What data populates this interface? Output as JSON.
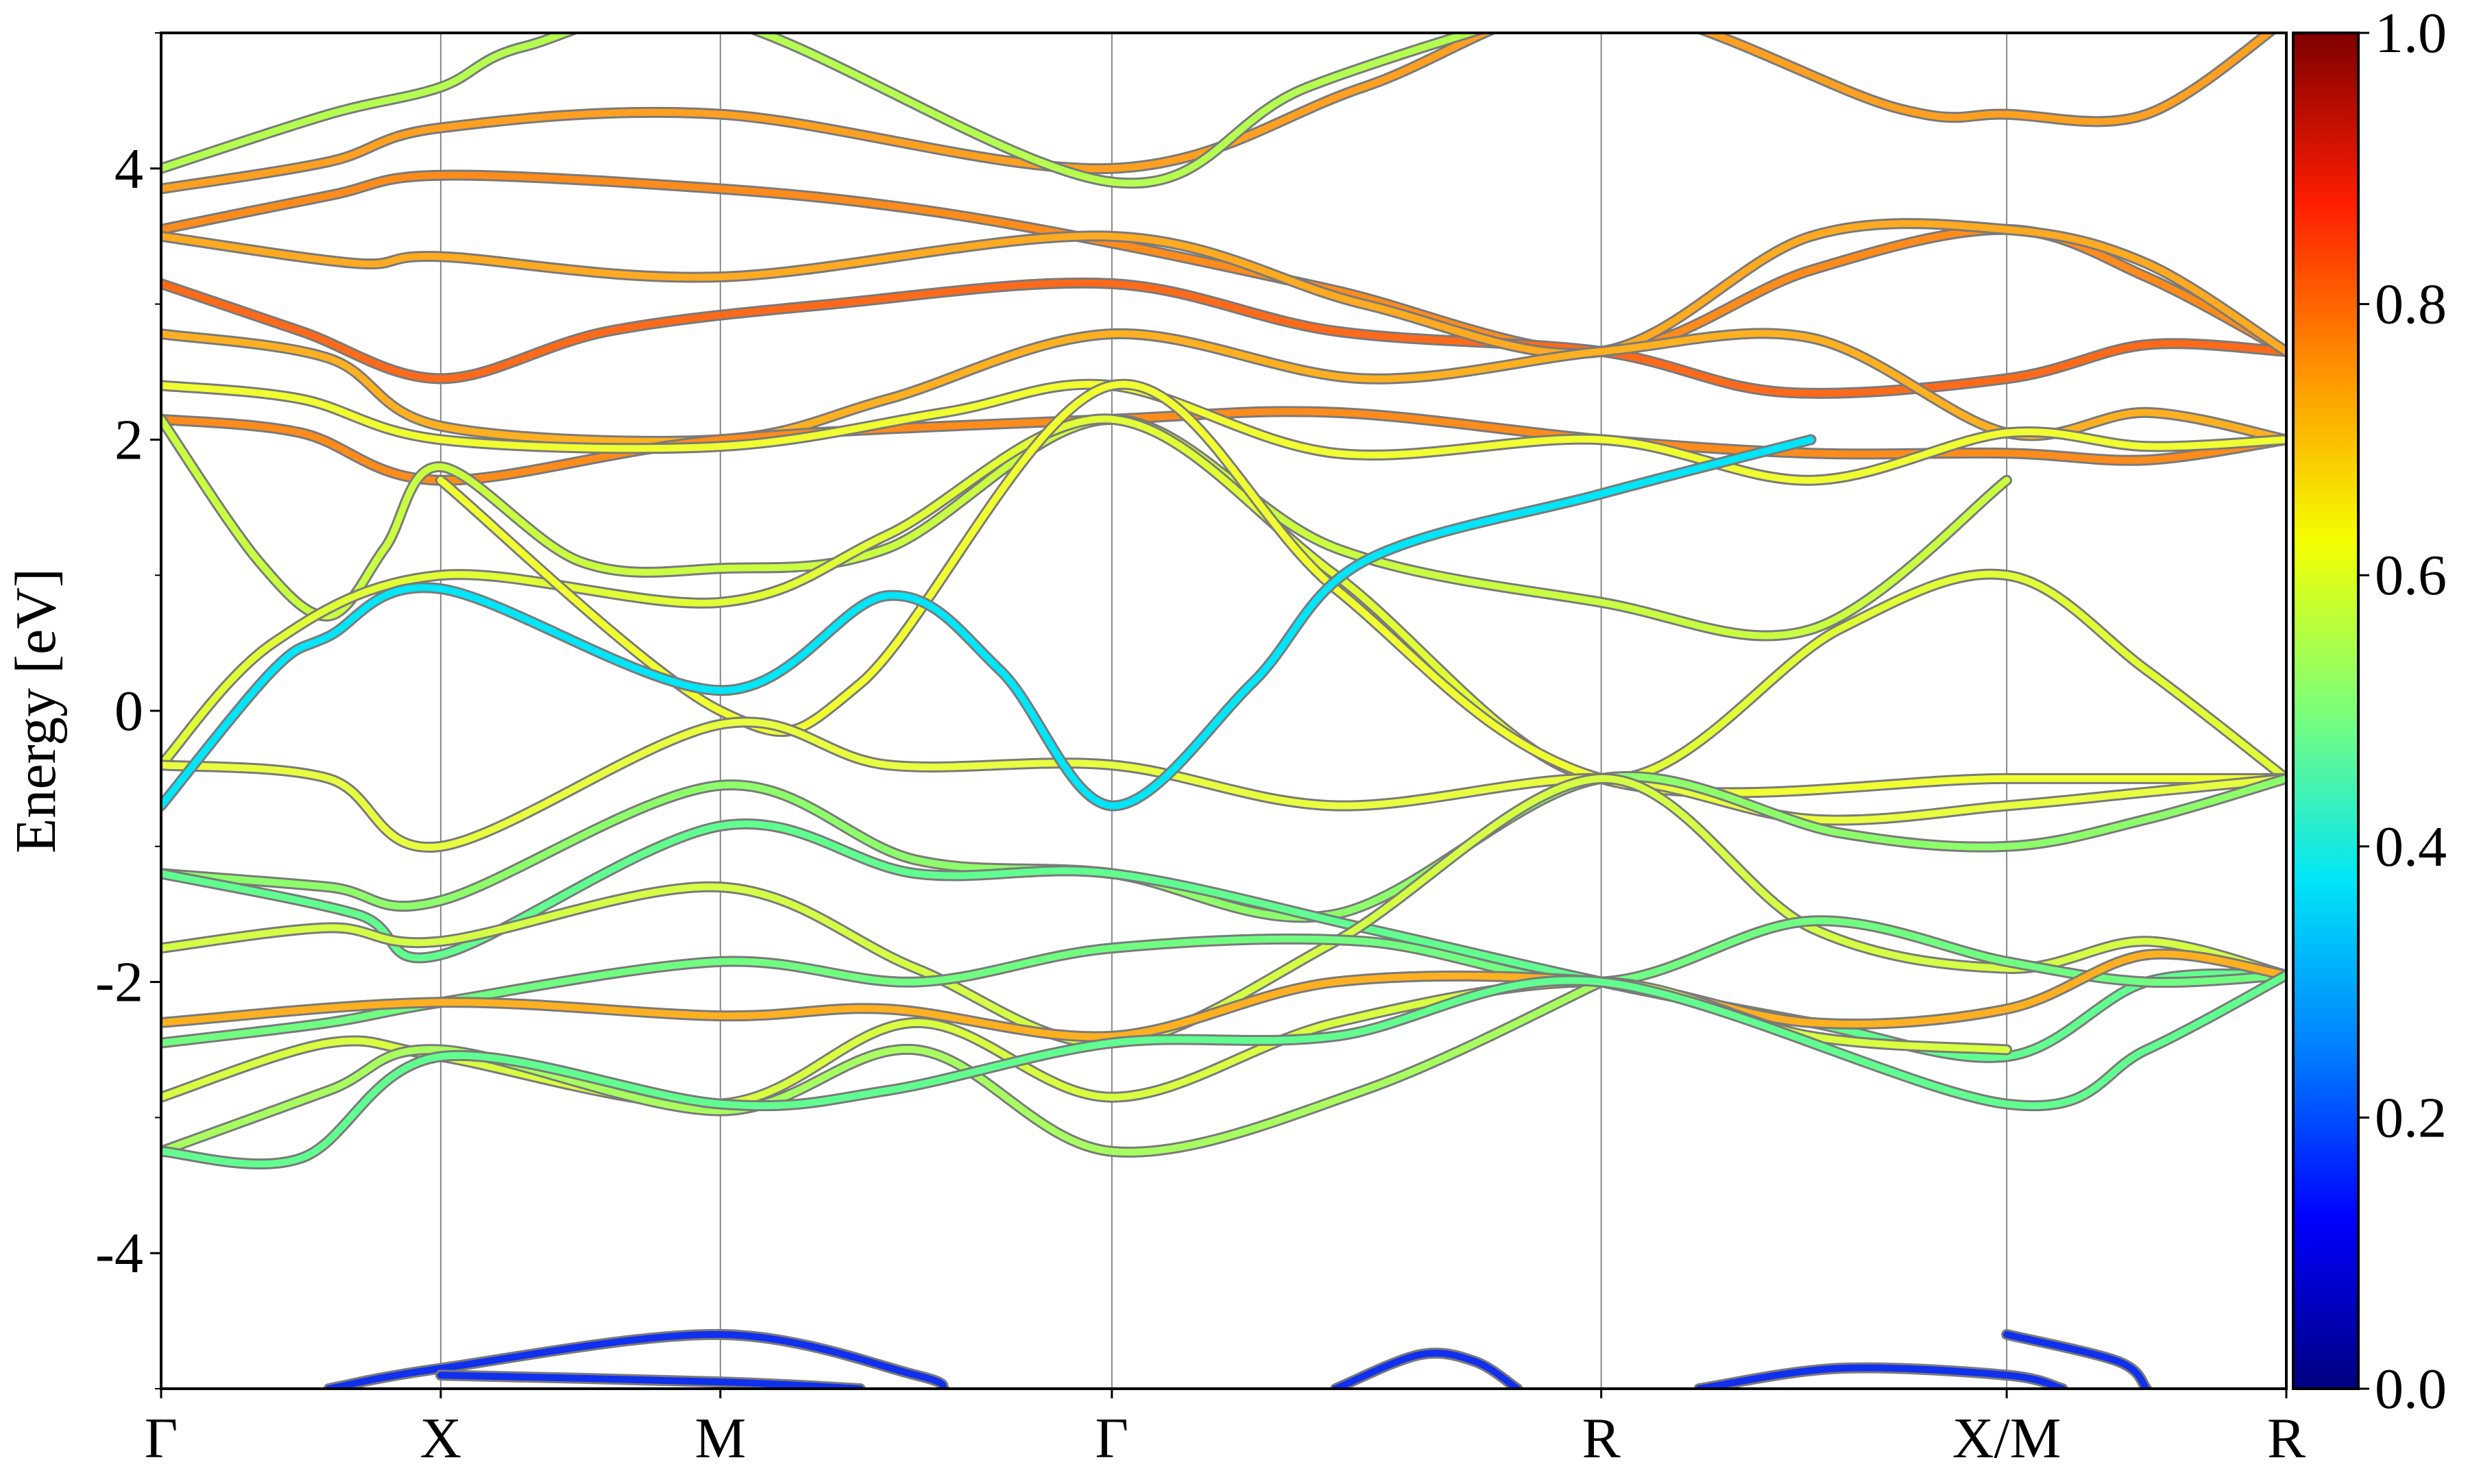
{
  "chart_data": {
    "type": "line",
    "title": "",
    "xlabel": "",
    "ylabel": "Energy [eV]",
    "ylim": [
      -5,
      5
    ],
    "yticks": [
      -4,
      -2,
      0,
      2,
      4
    ],
    "ytick_labels": [
      "-4",
      "-2",
      "0",
      "2",
      "4"
    ],
    "kpath_positions": [
      0,
      1,
      2,
      3.4,
      5.15,
      6.6,
      7.6
    ],
    "kpath_labels": [
      "Γ",
      "X",
      "M",
      "Γ",
      "R",
      "X/M",
      "R"
    ],
    "grid": "vertical lines at high-symmetry points",
    "colorbar": {
      "range": [
        0.0,
        1.0
      ],
      "ticks": [
        0.0,
        0.2,
        0.4,
        0.6,
        0.8,
        1.0
      ],
      "tick_labels": [
        "0.0",
        "0.2",
        "0.4",
        "0.6",
        "0.8",
        "1.0"
      ],
      "colormap": [
        "#00007f",
        "#0000ff",
        "#007fff",
        "#00e5f7",
        "#7cff79",
        "#f5ff00",
        "#ff9400",
        "#ff1d00",
        "#7f0000"
      ]
    },
    "series": [
      {
        "color": "#ff8c1a",
        "values": [
          [
            0,
            3.55
          ],
          [
            0.6,
            3.8
          ],
          [
            1,
            3.95
          ],
          [
            2,
            3.85
          ],
          [
            2.7,
            3.7
          ],
          [
            3.4,
            3.45
          ],
          [
            4.2,
            3.1
          ],
          [
            5.15,
            2.65
          ],
          [
            5.9,
            3.25
          ],
          [
            6.6,
            3.55
          ],
          [
            7.1,
            3.2
          ],
          [
            7.6,
            2.65
          ]
        ]
      },
      {
        "color": "#ff6a1a",
        "values": [
          [
            0,
            3.15
          ],
          [
            0.5,
            2.8
          ],
          [
            1,
            2.45
          ],
          [
            1.6,
            2.8
          ],
          [
            2.4,
            3.0
          ],
          [
            3.4,
            3.15
          ],
          [
            4.2,
            2.8
          ],
          [
            5.15,
            2.65
          ],
          [
            5.8,
            2.35
          ],
          [
            6.6,
            2.45
          ],
          [
            7.1,
            2.7
          ],
          [
            7.6,
            2.65
          ]
        ]
      },
      {
        "color": "#ffaa20",
        "values": [
          [
            0,
            3.5
          ],
          [
            0.7,
            3.3
          ],
          [
            1,
            3.35
          ],
          [
            2,
            3.2
          ],
          [
            3.4,
            3.5
          ],
          [
            4.3,
            3.0
          ],
          [
            5.15,
            2.65
          ],
          [
            5.9,
            3.5
          ],
          [
            6.6,
            3.55
          ],
          [
            7.1,
            3.3
          ],
          [
            7.6,
            2.65
          ]
        ]
      },
      {
        "color": "#ffb020",
        "values": [
          [
            0,
            2.78
          ],
          [
            0.6,
            2.6
          ],
          [
            1,
            2.1
          ],
          [
            2,
            2.0
          ],
          [
            2.6,
            2.3
          ],
          [
            3.4,
            2.78
          ],
          [
            4.3,
            2.45
          ],
          [
            5.15,
            2.65
          ],
          [
            5.9,
            2.75
          ],
          [
            6.6,
            2.05
          ],
          [
            7.1,
            2.2
          ],
          [
            7.6,
            2.0
          ]
        ]
      },
      {
        "color": "#ff8c1a",
        "values": [
          [
            0,
            2.15
          ],
          [
            0.5,
            2.05
          ],
          [
            1,
            1.7
          ],
          [
            2,
            2.0
          ],
          [
            3.4,
            2.15
          ],
          [
            4.2,
            2.2
          ],
          [
            5.15,
            2.0
          ],
          [
            5.9,
            1.9
          ],
          [
            6.6,
            1.9
          ],
          [
            7.1,
            1.85
          ],
          [
            7.6,
            2.0
          ]
        ]
      },
      {
        "color": "#ffa020",
        "values": [
          [
            0,
            3.85
          ],
          [
            0.6,
            4.05
          ],
          [
            1,
            4.3
          ],
          [
            2,
            4.4
          ],
          [
            3.4,
            4.0
          ],
          [
            4.3,
            4.6
          ],
          [
            5.15,
            5.2
          ],
          [
            6.2,
            4.45
          ],
          [
            6.6,
            4.4
          ],
          [
            7.1,
            4.4
          ],
          [
            7.6,
            5.1
          ]
        ]
      },
      {
        "color": "#b4ff50",
        "values": [
          [
            0,
            4.0
          ],
          [
            0.6,
            4.4
          ],
          [
            1,
            4.6
          ],
          [
            1.3,
            4.9
          ],
          [
            2,
            5.1
          ],
          [
            3.4,
            3.9
          ],
          [
            4.1,
            4.6
          ],
          [
            5.15,
            5.3
          ]
        ]
      },
      {
        "color": "#f0ff30",
        "values": [
          [
            0,
            2.4
          ],
          [
            0.5,
            2.3
          ],
          [
            1,
            2.0
          ],
          [
            2,
            1.95
          ],
          [
            2.8,
            2.2
          ],
          [
            3.4,
            2.4
          ],
          [
            4.2,
            1.9
          ],
          [
            5.15,
            2.0
          ],
          [
            5.9,
            1.7
          ],
          [
            6.6,
            2.05
          ],
          [
            7.1,
            1.95
          ],
          [
            7.6,
            2.0
          ]
        ]
      },
      {
        "color": "#c8ff40",
        "values": [
          [
            0,
            2.15
          ],
          [
            0.35,
            1.1
          ],
          [
            0.6,
            0.7
          ],
          [
            0.8,
            1.2
          ],
          [
            1,
            1.8
          ],
          [
            1.5,
            1.1
          ],
          [
            2,
            1.05
          ],
          [
            2.6,
            1.2
          ],
          [
            3.4,
            2.15
          ],
          [
            4.2,
            1.2
          ],
          [
            5.15,
            0.8
          ],
          [
            5.9,
            0.6
          ],
          [
            6.6,
            1.7
          ]
        ]
      },
      {
        "color": "#e0ff35",
        "values": [
          [
            0,
            -0.4
          ],
          [
            0.4,
            0.5
          ],
          [
            1,
            1.0
          ],
          [
            2,
            0.8
          ],
          [
            2.6,
            1.3
          ],
          [
            3.4,
            2.15
          ],
          [
            4.2,
            1.0
          ],
          [
            5.15,
            -0.5
          ],
          [
            6.0,
            0.6
          ],
          [
            6.6,
            1.0
          ],
          [
            7.1,
            0.3
          ],
          [
            7.6,
            -0.5
          ]
        ]
      },
      {
        "color": "#f0ff30",
        "values": [
          [
            1,
            1.7
          ],
          [
            2,
            0.0
          ],
          [
            2.5,
            0.2
          ],
          [
            3.4,
            2.4
          ],
          [
            4.2,
            0.9
          ],
          [
            5.15,
            -0.5
          ],
          [
            6.6,
            -0.5
          ],
          [
            7.6,
            -0.5
          ]
        ]
      },
      {
        "color": "#e8ff40",
        "values": [
          [
            0,
            -0.4
          ],
          [
            0.6,
            -0.5
          ],
          [
            1,
            -1.0
          ],
          [
            2,
            -0.1
          ],
          [
            2.6,
            -0.4
          ],
          [
            3.4,
            -0.4
          ],
          [
            4.2,
            -0.7
          ],
          [
            5.15,
            -0.5
          ],
          [
            5.9,
            -0.8
          ],
          [
            6.6,
            -0.7
          ],
          [
            7.1,
            -0.6
          ],
          [
            7.6,
            -0.5
          ]
        ]
      },
      {
        "color": "#00e5f7",
        "values": [
          [
            0,
            -0.7
          ],
          [
            0.4,
            0.3
          ],
          [
            0.6,
            0.55
          ],
          [
            1,
            0.9
          ],
          [
            2,
            0.15
          ],
          [
            2.6,
            0.85
          ],
          [
            3.0,
            0.3
          ],
          [
            3.4,
            -0.7
          ],
          [
            3.9,
            0.2
          ],
          [
            4.3,
            1.1
          ],
          [
            5.15,
            1.6
          ],
          [
            5.9,
            2.0
          ]
        ]
      },
      {
        "color": "#8cff6a",
        "values": [
          [
            0,
            -1.2
          ],
          [
            0.6,
            -1.3
          ],
          [
            1,
            -1.4
          ],
          [
            2,
            -0.55
          ],
          [
            2.7,
            -1.1
          ],
          [
            3.4,
            -1.2
          ],
          [
            4.2,
            -1.5
          ],
          [
            5.15,
            -0.5
          ],
          [
            6.0,
            -0.9
          ],
          [
            6.6,
            -1.0
          ],
          [
            7.1,
            -0.8
          ],
          [
            7.6,
            -0.5
          ]
        ]
      },
      {
        "color": "#60ff90",
        "values": [
          [
            0,
            -1.2
          ],
          [
            0.7,
            -1.5
          ],
          [
            1,
            -1.8
          ],
          [
            2,
            -0.85
          ],
          [
            2.7,
            -1.2
          ],
          [
            3.4,
            -1.2
          ],
          [
            4.3,
            -1.6
          ],
          [
            5.15,
            -2.0
          ],
          [
            5.9,
            -2.3
          ],
          [
            6.6,
            -2.55
          ],
          [
            7.1,
            -2.0
          ],
          [
            7.6,
            -1.95
          ]
        ]
      },
      {
        "color": "#d4ff45",
        "values": [
          [
            0,
            -1.75
          ],
          [
            0.6,
            -1.6
          ],
          [
            1,
            -1.7
          ],
          [
            2,
            -1.3
          ],
          [
            2.7,
            -1.9
          ],
          [
            3.4,
            -2.45
          ],
          [
            4.2,
            -1.7
          ],
          [
            5.15,
            -0.5
          ],
          [
            5.9,
            -1.6
          ],
          [
            6.6,
            -1.9
          ],
          [
            7.1,
            -1.7
          ],
          [
            7.6,
            -1.95
          ]
        ]
      },
      {
        "color": "#70ff80",
        "values": [
          [
            0,
            -2.45
          ],
          [
            0.6,
            -2.3
          ],
          [
            1,
            -2.15
          ],
          [
            2,
            -1.85
          ],
          [
            2.7,
            -2.0
          ],
          [
            3.4,
            -1.75
          ],
          [
            4.3,
            -1.7
          ],
          [
            5.15,
            -2.0
          ],
          [
            5.9,
            -1.55
          ],
          [
            6.6,
            -1.85
          ],
          [
            7.1,
            -2.0
          ],
          [
            7.6,
            -1.95
          ]
        ]
      },
      {
        "color": "#ffb020",
        "values": [
          [
            0,
            -2.3
          ],
          [
            1,
            -2.15
          ],
          [
            2,
            -2.25
          ],
          [
            2.6,
            -2.2
          ],
          [
            3.4,
            -2.4
          ],
          [
            4.2,
            -2.0
          ],
          [
            5.15,
            -2.0
          ],
          [
            5.9,
            -2.3
          ],
          [
            6.6,
            -2.2
          ],
          [
            7.1,
            -1.8
          ],
          [
            7.6,
            -1.95
          ]
        ]
      },
      {
        "color": "#d8ff40",
        "values": [
          [
            0,
            -2.85
          ],
          [
            0.6,
            -2.45
          ],
          [
            1,
            -2.55
          ],
          [
            2,
            -2.9
          ],
          [
            2.7,
            -2.3
          ],
          [
            3.4,
            -2.85
          ],
          [
            4.2,
            -2.3
          ],
          [
            5.15,
            -2.0
          ],
          [
            5.9,
            -2.4
          ],
          [
            6.6,
            -2.5
          ]
        ]
      },
      {
        "color": "#a8ff60",
        "values": [
          [
            0,
            -3.25
          ],
          [
            0.6,
            -2.8
          ],
          [
            1,
            -2.5
          ],
          [
            2,
            -2.95
          ],
          [
            2.7,
            -2.5
          ],
          [
            3.4,
            -3.25
          ],
          [
            4.3,
            -2.8
          ],
          [
            5.15,
            -2.0
          ]
        ]
      },
      {
        "color": "#60ff90",
        "values": [
          [
            0,
            -3.25
          ],
          [
            0.5,
            -3.3
          ],
          [
            1,
            -2.55
          ],
          [
            2,
            -2.9
          ],
          [
            2.6,
            -2.8
          ],
          [
            3.4,
            -2.45
          ],
          [
            4.2,
            -2.4
          ],
          [
            5.15,
            -2.0
          ],
          [
            6.6,
            -2.9
          ],
          [
            7.1,
            -2.5
          ],
          [
            7.6,
            -1.95
          ]
        ]
      },
      {
        "color": "#1030ee",
        "values": [
          [
            0.6,
            -5.0
          ],
          [
            1,
            -4.85
          ],
          [
            2,
            -4.6
          ],
          [
            2.7,
            -4.9
          ],
          [
            2.8,
            -5.0
          ]
        ]
      },
      {
        "color": "#1030ee",
        "values": [
          [
            1,
            -4.9
          ],
          [
            2,
            -4.95
          ],
          [
            2.5,
            -5.0
          ]
        ]
      },
      {
        "color": "#1030ee",
        "values": [
          [
            4.2,
            -5.0
          ],
          [
            4.5,
            -4.75
          ],
          [
            4.7,
            -4.8
          ],
          [
            4.85,
            -5.0
          ]
        ]
      },
      {
        "color": "#1030ee",
        "values": [
          [
            5.5,
            -5.0
          ],
          [
            6.0,
            -4.85
          ],
          [
            6.6,
            -4.9
          ],
          [
            6.8,
            -5.0
          ]
        ]
      },
      {
        "color": "#1030ee",
        "values": [
          [
            6.6,
            -4.6
          ],
          [
            7.0,
            -4.8
          ],
          [
            7.1,
            -5.0
          ]
        ]
      }
    ]
  }
}
